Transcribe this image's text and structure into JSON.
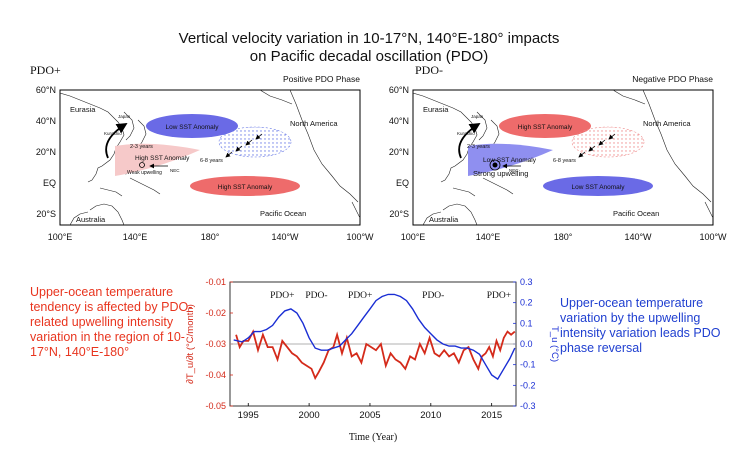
{
  "title": {
    "line1": "Vertical velocity variation in 10-17°N, 140°E-180° impacts",
    "line2": "on Pacific decadal oscillation (PDO)"
  },
  "panels": [
    {
      "id": "pdo_pos",
      "label": "PDO+",
      "phase_title": "Positive PDO Phase",
      "lat_labels": [
        "60°N",
        "40°N",
        "20°N",
        "EQ",
        "20°S"
      ],
      "lon_labels": [
        "100°E",
        "140°E",
        "180°",
        "140°W",
        "100°W"
      ],
      "regions": [
        "Eurasia",
        "North America",
        "Australia",
        "Pacific Ocean"
      ],
      "anomaly_top": "Low SST Anomaly",
      "anomaly_bottom": "High SST Anomaly",
      "warm_pool": "High SST Anomaly",
      "upwelling": "Weak upwelling",
      "period_short": "2-3 years",
      "period_long": "6-8 years",
      "current_japan": "Japan",
      "current_kuroshio": "Kuroshio",
      "current_nec": "NEC",
      "colors": {
        "top": "#6a6ae6",
        "bottom": "#ee6b6b",
        "warm": "#f6c9c9"
      }
    },
    {
      "id": "pdo_neg",
      "label": "PDO-",
      "phase_title": "Negative PDO Phase",
      "lat_labels": [
        "60°N",
        "40°N",
        "20°N",
        "EQ",
        "20°S"
      ],
      "lon_labels": [
        "100°E",
        "140°E",
        "180°",
        "140°W",
        "100°W"
      ],
      "regions": [
        "Eurasia",
        "North America",
        "Australia",
        "Pacific Ocean"
      ],
      "anomaly_top": "High SST Anomaly",
      "anomaly_bottom": "Low SST Anomaly",
      "warm_pool": "Low SST Anomaly",
      "upwelling": "Strong upwelling",
      "period_short": "2-3 years",
      "period_long": "6-8 years",
      "current_japan": "Japan",
      "current_kuroshio": "Kuroshio",
      "current_nec": "NEC",
      "colors": {
        "top": "#ee6b6b",
        "bottom": "#6a6ae6",
        "warm": "#8f8ff0"
      }
    }
  ],
  "left_text": "Upper-ocean temperature tendency is affected by PDO-related upwelling intensity variation in the region of 10-17°N, 140°E-180°",
  "right_text": "Upper-ocean temperature variation by the upwelling intensity variation leads PDO phase reversal",
  "chart_data": {
    "type": "line",
    "xlabel": "Time (Year)",
    "ylabel_left": "∂T_u/∂t (°C/month)",
    "ylabel_right": "T_u (°C)",
    "xlim": [
      1993.5,
      2017
    ],
    "ylim_left": [
      -0.05,
      -0.01
    ],
    "ylim_right": [
      -0.3,
      0.3
    ],
    "x_ticks": [
      1995,
      2000,
      2005,
      2010,
      2015
    ],
    "y_ticks_left": [
      -0.05,
      -0.04,
      -0.03,
      -0.02,
      -0.01
    ],
    "y_ticks_right": [
      -0.3,
      -0.2,
      -0.1,
      0,
      0.1,
      0.2,
      0.3
    ],
    "y_tick_labels_left": [
      "-0.05",
      "-0.04",
      "-0.03",
      "-0.02",
      "-0.01"
    ],
    "y_tick_labels_right": [
      "-0.3",
      "-0.2",
      "-0.1",
      "0.0",
      "0.1",
      "0.2",
      "0.3"
    ],
    "zero_line_right": 0,
    "phase_labels": [
      {
        "text": "PDO+",
        "x": 1997.8
      },
      {
        "text": "PDO-",
        "x": 2000.6
      },
      {
        "text": "PDO+",
        "x": 2004.2
      },
      {
        "text": "PDO-",
        "x": 2010.2
      },
      {
        "text": "PDO+",
        "x": 2015.6
      }
    ],
    "series": [
      {
        "name": "dTu/dt",
        "axis": "left",
        "color": "#d42a1a",
        "x": [
          1994,
          1994.3,
          1994.6,
          1995,
          1995.4,
          1995.8,
          1996.2,
          1996.6,
          1997,
          1997.4,
          1997.8,
          1998.2,
          1998.6,
          1999,
          1999.4,
          1999.8,
          2000.2,
          2000.5,
          2000.8,
          2001.2,
          2001.6,
          2002,
          2002.3,
          2002.7,
          2003.1,
          2003.5,
          2003.9,
          2004.3,
          2004.7,
          2005.1,
          2005.5,
          2005.9,
          2006.3,
          2006.7,
          2007.1,
          2007.5,
          2007.9,
          2008.3,
          2008.7,
          2009.1,
          2009.5,
          2009.9,
          2010.3,
          2010.7,
          2011.1,
          2011.5,
          2011.9,
          2012.3,
          2012.7,
          2013.1,
          2013.5,
          2013.9,
          2014.2,
          2014.5,
          2014.8,
          2015.1,
          2015.4,
          2015.7,
          2016,
          2016.3,
          2016.6,
          2016.9
        ],
        "values": [
          -0.027,
          -0.031,
          -0.029,
          -0.029,
          -0.026,
          -0.032,
          -0.027,
          -0.031,
          -0.031,
          -0.035,
          -0.029,
          -0.031,
          -0.033,
          -0.034,
          -0.036,
          -0.037,
          -0.038,
          -0.041,
          -0.039,
          -0.036,
          -0.032,
          -0.031,
          -0.027,
          -0.033,
          -0.028,
          -0.034,
          -0.033,
          -0.036,
          -0.03,
          -0.031,
          -0.032,
          -0.03,
          -0.037,
          -0.033,
          -0.035,
          -0.036,
          -0.038,
          -0.034,
          -0.035,
          -0.03,
          -0.033,
          -0.028,
          -0.033,
          -0.034,
          -0.032,
          -0.034,
          -0.033,
          -0.036,
          -0.032,
          -0.031,
          -0.035,
          -0.038,
          -0.034,
          -0.033,
          -0.031,
          -0.034,
          -0.029,
          -0.032,
          -0.028,
          -0.026,
          -0.027,
          -0.026
        ]
      },
      {
        "name": "Tu",
        "axis": "right",
        "color": "#1a2ed4",
        "x": [
          1993.8,
          1994.5,
          1995,
          1995.5,
          1996,
          1996.5,
          1997,
          1997.5,
          1998,
          1998.5,
          1999,
          1999.5,
          2000,
          2000.5,
          2001,
          2001.5,
          2002,
          2002.5,
          2003,
          2003.5,
          2004,
          2004.5,
          2005,
          2005.5,
          2006,
          2006.5,
          2007,
          2007.5,
          2008,
          2008.5,
          2009,
          2009.5,
          2010,
          2010.5,
          2011,
          2011.5,
          2012,
          2012.5,
          2013,
          2013.5,
          2014,
          2014.5,
          2015,
          2015.5,
          2016,
          2016.5,
          2016.9
        ],
        "values": [
          0.02,
          0.01,
          0.03,
          0.06,
          0.06,
          0.07,
          0.09,
          0.13,
          0.16,
          0.17,
          0.15,
          0.1,
          0.03,
          -0.02,
          -0.03,
          -0.03,
          -0.02,
          -0.01,
          0.02,
          0.05,
          0.09,
          0.13,
          0.17,
          0.21,
          0.23,
          0.24,
          0.24,
          0.23,
          0.21,
          0.17,
          0.12,
          0.08,
          0.05,
          0.02,
          0.0,
          -0.01,
          -0.01,
          -0.02,
          -0.02,
          -0.03,
          -0.05,
          -0.1,
          -0.15,
          -0.17,
          -0.12,
          -0.07,
          -0.02
        ]
      }
    ]
  }
}
